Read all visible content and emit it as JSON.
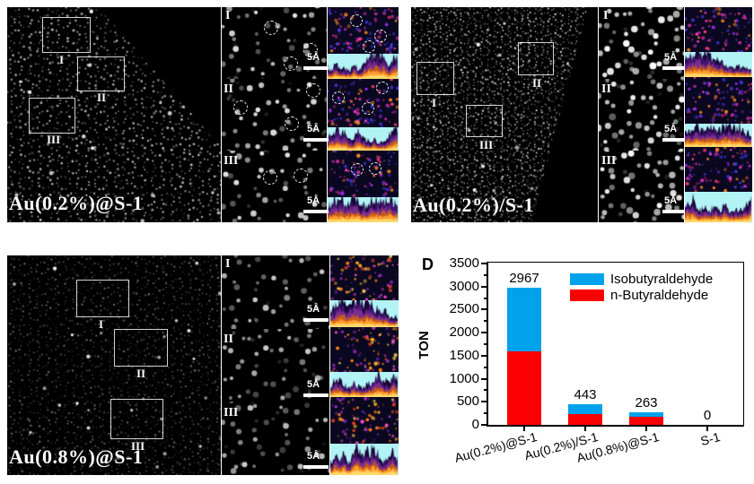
{
  "figure_panels": {
    "panel_a": {
      "label": "Au(0.2%)@S-1"
    },
    "panel_b": {
      "label": "Au(0.2%)/S-1"
    },
    "panel_c": {
      "label": "Au(0.8%)@S-1"
    }
  },
  "romans": [
    "I",
    "II",
    "III"
  ],
  "scale_bar": "5Å",
  "chart_data": {
    "type": "bar",
    "stacked": true,
    "panel_label": "D",
    "title": "",
    "xlabel": "",
    "ylabel": "TON",
    "ylim": [
      0,
      3500
    ],
    "ytick_step": 500,
    "ytick_minor_step": 250,
    "grid": false,
    "legend_position": "top-right-inside",
    "categories": [
      "Au(0.2%)@S-1",
      "Au(0.2%)/S-1",
      "Au(0.8%)@S-1",
      "S-1"
    ],
    "series": [
      {
        "name": "Isobutyraldehyde",
        "color": "#00a2ec",
        "values": [
          1377,
          203,
          93,
          0
        ]
      },
      {
        "name": "n-Butyraldehyde",
        "color": "#fa0000",
        "values": [
          1590,
          240,
          170,
          0
        ]
      }
    ],
    "totals": [
      2967,
      443,
      263,
      0
    ],
    "axis_color": "#000000"
  },
  "colors": {
    "chart_blue": "#00a2ec",
    "chart_red": "#fa0000",
    "micrograph_bg": "#000000"
  }
}
